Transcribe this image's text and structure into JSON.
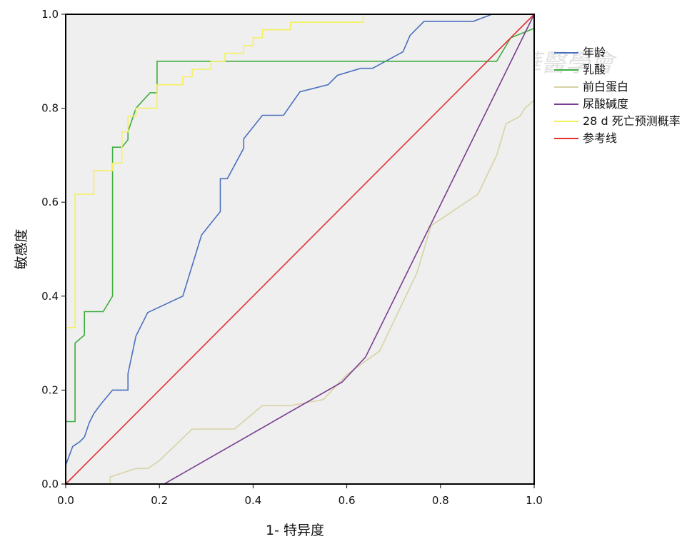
{
  "chart_data": {
    "type": "line",
    "xlabel": "1- 特异度",
    "ylabel": "敏感度",
    "xlim": [
      0,
      1
    ],
    "ylim": [
      0,
      1
    ],
    "x_ticks": [
      "0.0",
      "0.2",
      "0.4",
      "0.6",
      "0.8",
      "1.0"
    ],
    "y_ticks": [
      "0.0",
      "0.2",
      "0.4",
      "0.6",
      "0.8",
      "1.0"
    ],
    "grid": false,
    "legend_position": "right",
    "plot_background": "#efefef",
    "series": [
      {
        "name": "年龄",
        "color": "#4a6fbf",
        "points": [
          [
            0,
            0.03
          ],
          [
            0,
            0.04
          ],
          [
            0.015,
            0.08
          ],
          [
            0.03,
            0.09
          ],
          [
            0.04,
            0.1
          ],
          [
            0.05,
            0.13
          ],
          [
            0.06,
            0.15
          ],
          [
            0.075,
            0.17
          ],
          [
            0.1,
            0.2
          ],
          [
            0.133,
            0.2
          ],
          [
            0.133,
            0.235
          ],
          [
            0.15,
            0.315
          ],
          [
            0.175,
            0.365
          ],
          [
            0.25,
            0.4
          ],
          [
            0.29,
            0.53
          ],
          [
            0.33,
            0.58
          ],
          [
            0.33,
            0.65
          ],
          [
            0.345,
            0.65
          ],
          [
            0.38,
            0.715
          ],
          [
            0.38,
            0.735
          ],
          [
            0.42,
            0.785
          ],
          [
            0.465,
            0.785
          ],
          [
            0.5,
            0.835
          ],
          [
            0.56,
            0.85
          ],
          [
            0.58,
            0.87
          ],
          [
            0.63,
            0.885
          ],
          [
            0.655,
            0.885
          ],
          [
            0.72,
            0.92
          ],
          [
            0.735,
            0.955
          ],
          [
            0.765,
            0.985
          ],
          [
            0.87,
            0.985
          ],
          [
            0.91,
            1.0
          ],
          [
            1.0,
            1.0
          ]
        ]
      },
      {
        "name": "乳酸",
        "color": "#3dad3d",
        "points": [
          [
            0,
            0
          ],
          [
            0,
            0.133
          ],
          [
            0.02,
            0.133
          ],
          [
            0.02,
            0.3
          ],
          [
            0.04,
            0.317
          ],
          [
            0.04,
            0.367
          ],
          [
            0.075,
            0.367
          ],
          [
            0.08,
            0.367
          ],
          [
            0.1,
            0.4
          ],
          [
            0.1,
            0.717
          ],
          [
            0.12,
            0.717
          ],
          [
            0.133,
            0.733
          ],
          [
            0.133,
            0.75
          ],
          [
            0.15,
            0.8
          ],
          [
            0.18,
            0.833
          ],
          [
            0.195,
            0.833
          ],
          [
            0.195,
            0.9
          ],
          [
            0.92,
            0.9
          ],
          [
            0.95,
            0.95
          ],
          [
            1.0,
            0.97
          ],
          [
            1.0,
            1.0
          ]
        ]
      },
      {
        "name": "前白蛋白",
        "color": "#d8d2a6",
        "points": [
          [
            0.095,
            0
          ],
          [
            0.095,
            0.015
          ],
          [
            0.15,
            0.033
          ],
          [
            0.175,
            0.033
          ],
          [
            0.2,
            0.05
          ],
          [
            0.27,
            0.117
          ],
          [
            0.36,
            0.117
          ],
          [
            0.42,
            0.167
          ],
          [
            0.48,
            0.167
          ],
          [
            0.55,
            0.18
          ],
          [
            0.6,
            0.233
          ],
          [
            0.67,
            0.283
          ],
          [
            0.75,
            0.45
          ],
          [
            0.78,
            0.55
          ],
          [
            0.88,
            0.617
          ],
          [
            0.92,
            0.7
          ],
          [
            0.94,
            0.767
          ],
          [
            0.97,
            0.783
          ],
          [
            0.98,
            0.8
          ],
          [
            1.0,
            0.817
          ]
        ]
      },
      {
        "name": "尿酸碱度",
        "color": "#7a3d8f",
        "points": [
          [
            0,
            0
          ],
          [
            0.21,
            0
          ],
          [
            0.59,
            0.217
          ],
          [
            0.64,
            0.27
          ],
          [
            1.0,
            1.0
          ]
        ]
      },
      {
        "name": "28 d 死亡预测概率",
        "color": "#f4f060",
        "points": [
          [
            0,
            0
          ],
          [
            0,
            0.333
          ],
          [
            0.02,
            0.333
          ],
          [
            0.02,
            0.617
          ],
          [
            0.06,
            0.617
          ],
          [
            0.06,
            0.667
          ],
          [
            0.1,
            0.667
          ],
          [
            0.1,
            0.683
          ],
          [
            0.12,
            0.683
          ],
          [
            0.12,
            0.75
          ],
          [
            0.133,
            0.75
          ],
          [
            0.133,
            0.783
          ],
          [
            0.15,
            0.783
          ],
          [
            0.15,
            0.8
          ],
          [
            0.195,
            0.8
          ],
          [
            0.195,
            0.85
          ],
          [
            0.25,
            0.85
          ],
          [
            0.25,
            0.867
          ],
          [
            0.27,
            0.867
          ],
          [
            0.27,
            0.883
          ],
          [
            0.31,
            0.883
          ],
          [
            0.31,
            0.9
          ],
          [
            0.34,
            0.9
          ],
          [
            0.34,
            0.917
          ],
          [
            0.36,
            0.917
          ],
          [
            0.38,
            0.917
          ],
          [
            0.38,
            0.933
          ],
          [
            0.4,
            0.933
          ],
          [
            0.4,
            0.95
          ],
          [
            0.42,
            0.95
          ],
          [
            0.42,
            0.967
          ],
          [
            0.48,
            0.967
          ],
          [
            0.48,
            0.983
          ],
          [
            0.635,
            0.983
          ],
          [
            0.635,
            1.0
          ],
          [
            1.0,
            1.0
          ]
        ]
      },
      {
        "name": "参考线",
        "color": "#e53030",
        "points": [
          [
            0,
            0
          ],
          [
            1,
            1
          ]
        ]
      }
    ]
  }
}
